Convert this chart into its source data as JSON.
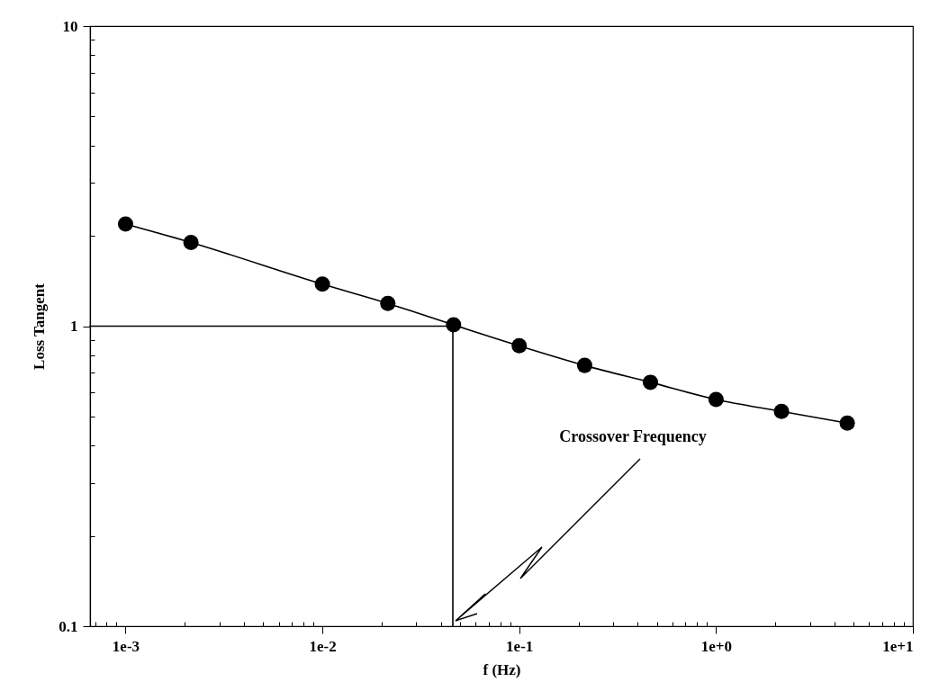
{
  "chart_data": {
    "type": "line",
    "xlabel": "f (Hz)",
    "ylabel": "Loss Tangent",
    "log": "xy",
    "marker": "circle",
    "xlim": [
      0.00066,
      10
    ],
    "ylim": [
      0.1,
      10
    ],
    "xticks": [
      {
        "value": 0.0007,
        "label": null
      },
      {
        "value": 0.0008,
        "label": null
      },
      {
        "value": 0.0009,
        "label": null
      },
      {
        "value": 0.001,
        "label": "1e-3"
      },
      {
        "value": 0.002,
        "label": null
      },
      {
        "value": 0.003,
        "label": null
      },
      {
        "value": 0.004,
        "label": null
      },
      {
        "value": 0.005,
        "label": null
      },
      {
        "value": 0.006,
        "label": null
      },
      {
        "value": 0.007,
        "label": null
      },
      {
        "value": 0.008,
        "label": null
      },
      {
        "value": 0.009,
        "label": null
      },
      {
        "value": 0.01,
        "label": "1e-2"
      },
      {
        "value": 0.02,
        "label": null
      },
      {
        "value": 0.03,
        "label": null
      },
      {
        "value": 0.04,
        "label": null
      },
      {
        "value": 0.05,
        "label": null
      },
      {
        "value": 0.06,
        "label": null
      },
      {
        "value": 0.07,
        "label": null
      },
      {
        "value": 0.08,
        "label": null
      },
      {
        "value": 0.09,
        "label": null
      },
      {
        "value": 0.1,
        "label": "1e-1"
      },
      {
        "value": 0.2,
        "label": null
      },
      {
        "value": 0.3,
        "label": null
      },
      {
        "value": 0.4,
        "label": null
      },
      {
        "value": 0.5,
        "label": null
      },
      {
        "value": 0.6,
        "label": null
      },
      {
        "value": 0.7,
        "label": null
      },
      {
        "value": 0.8,
        "label": null
      },
      {
        "value": 0.9,
        "label": null
      },
      {
        "value": 1,
        "label": "1e+0"
      },
      {
        "value": 2,
        "label": null
      },
      {
        "value": 3,
        "label": null
      },
      {
        "value": 4,
        "label": null
      },
      {
        "value": 5,
        "label": null
      },
      {
        "value": 6,
        "label": null
      },
      {
        "value": 7,
        "label": null
      },
      {
        "value": 8,
        "label": null
      },
      {
        "value": 9,
        "label": null
      },
      {
        "value": 10,
        "label": "1e+1"
      }
    ],
    "yticks": [
      0.1,
      {
        "value": 0.2,
        "label": null
      },
      {
        "value": 0.3,
        "label": null
      },
      {
        "value": 0.4,
        "label": null
      },
      {
        "value": 0.5,
        "label": null
      },
      {
        "value": 0.6,
        "label": null
      },
      {
        "value": 0.7,
        "label": null
      },
      {
        "value": 0.8,
        "label": null
      },
      {
        "value": 0.9,
        "label": null
      },
      1,
      {
        "value": 2,
        "label": null
      },
      {
        "value": 3,
        "label": null
      },
      {
        "value": 4,
        "label": null
      },
      {
        "value": 5,
        "label": null
      },
      {
        "value": 6,
        "label": null
      },
      {
        "value": 7,
        "label": null
      },
      {
        "value": 8,
        "label": null
      },
      {
        "value": 9,
        "label": null
      },
      10
    ],
    "series": [
      {
        "type": "line",
        "marker": "none",
        "color": "#000000",
        "x": [
          0.00066,
          0.046,
          0.046
        ],
        "values": [
          1,
          1,
          0.1
        ]
      },
      {
        "color": "#000000",
        "x": [
          0.001,
          0.00215,
          0.01,
          0.0215,
          0.0464,
          0.1,
          0.215,
          0.464,
          1,
          2.15,
          4.64
        ],
        "values": [
          2.19,
          1.9,
          1.38,
          1.19,
          1.01,
          0.86,
          0.74,
          0.65,
          0.57,
          0.52,
          0.475
        ]
      }
    ],
    "annotations": [
      {
        "text": "Crossover Frequency",
        "x": 0.046,
        "y": 0.1
      }
    ]
  }
}
